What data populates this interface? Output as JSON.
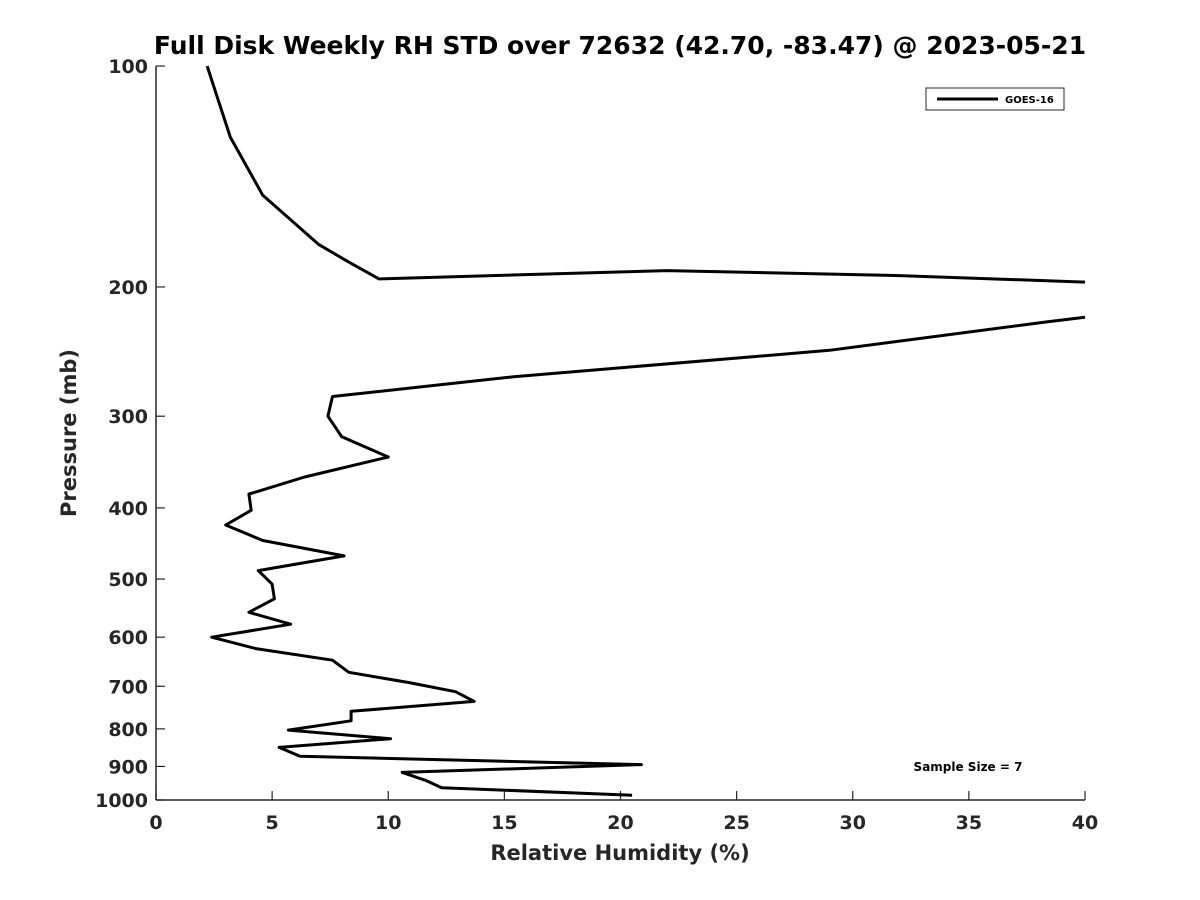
{
  "chart_data": {
    "type": "line",
    "title": "Full Disk Weekly RH STD over 72632 (42.70, -83.47) @ 2023-05-21",
    "xlabel": "Relative Humidity (%)",
    "ylabel": "Pressure (mb)",
    "xlim": [
      0,
      40
    ],
    "ylim": [
      100,
      1000
    ],
    "yscale": "log",
    "reverse_y": true,
    "grid": false,
    "x_ticks": [
      0,
      5,
      10,
      15,
      20,
      25,
      30,
      35,
      40
    ],
    "x_tick_labels": [
      "0",
      "5",
      "10",
      "15",
      "20",
      "25",
      "30",
      "35",
      "40"
    ],
    "y_ticks": [
      100,
      200,
      300,
      400,
      500,
      600,
      700,
      800,
      900,
      1000
    ],
    "y_tick_labels": [
      "100",
      "200",
      "300",
      "400",
      "500",
      "600",
      "700",
      "800",
      "900",
      "1000"
    ],
    "legend": {
      "position": "top-right",
      "entries": [
        "GOES-16"
      ]
    },
    "annotation": "Sample Size = 7",
    "series": [
      {
        "name": "GOES-16",
        "color": "#000000",
        "segments": [
          {
            "rh": [
              2.2,
              3.2,
              4.6,
              7.0,
              8.3,
              9.6,
              22.0,
              32.0,
              40.0
            ],
            "p": [
              100,
              125,
              150,
              175,
              185,
              195,
              190,
              193,
              197
            ]
          },
          {
            "rh": [
              40.0,
              38.4,
              29.0,
              15.4,
              7.6,
              7.4,
              8.0,
              10.0,
              6.4,
              4.0,
              4.1,
              3.0,
              4.6,
              8.1,
              4.4,
              5.0,
              5.1,
              4.0,
              5.8,
              2.4,
              4.3,
              7.6,
              8.3,
              10.9,
              12.9,
              13.7,
              8.4,
              8.4,
              5.7,
              10.1,
              5.3,
              6.2,
              20.9,
              10.6,
              11.6,
              12.3,
              20.5
            ],
            "p": [
              220,
              223,
              244,
              265,
              282,
              300,
              320,
              341,
              363,
              383,
              403,
              422,
              443,
              465,
              487,
              508,
              532,
              555,
              576,
              600,
              622,
              645,
              670,
              692,
              712,
              734,
              757,
              780,
              803,
              825,
              848,
              872,
              895,
              917,
              940,
              962,
              985
            ]
          }
        ]
      }
    ]
  }
}
